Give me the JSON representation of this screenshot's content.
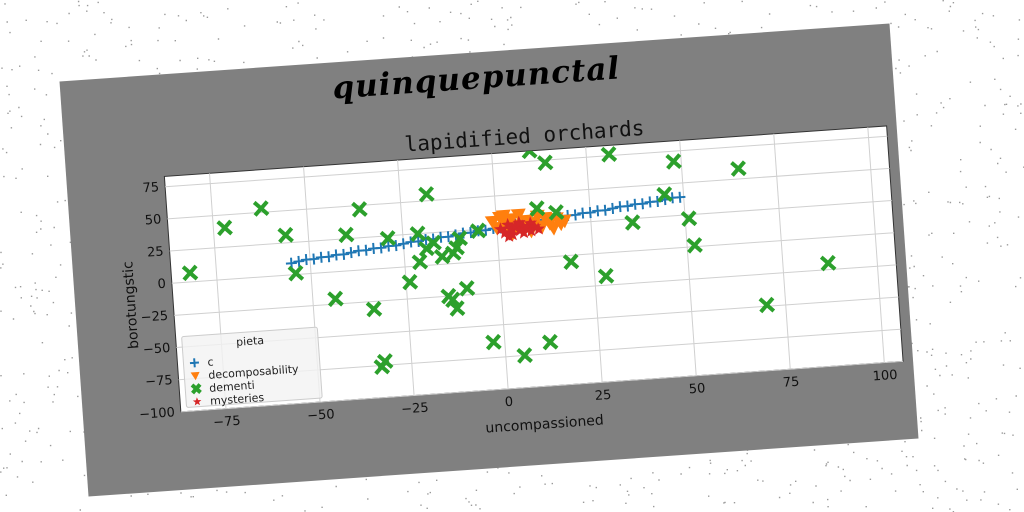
{
  "figure": {
    "suptitle": "quinquepunctal",
    "background_color": "#808080",
    "axes_background_color": "#ffffff"
  },
  "chart_data": {
    "type": "scatter",
    "title": "lapidified orchards",
    "xlabel": "uncompassioned",
    "ylabel": "borotungstic",
    "xlim": [
      -87,
      105
    ],
    "ylim": [
      -100,
      83
    ],
    "xticks": [
      -75,
      -50,
      -25,
      0,
      25,
      50,
      75,
      100
    ],
    "yticks": [
      -100,
      -75,
      -50,
      -25,
      0,
      25,
      50,
      75
    ],
    "grid": true,
    "legend": {
      "title": "pieta",
      "placement": "lower left"
    },
    "series": [
      {
        "name": "c",
        "marker": "plus",
        "color": "#1f77b4",
        "points": [
          [
            -55,
            9
          ],
          [
            -53,
            10
          ],
          [
            -51,
            11
          ],
          [
            -49,
            11
          ],
          [
            -47,
            12
          ],
          [
            -45,
            12
          ],
          [
            -43,
            13
          ],
          [
            -41,
            13
          ],
          [
            -39,
            14
          ],
          [
            -37,
            15
          ],
          [
            -35,
            15
          ],
          [
            -33,
            16
          ],
          [
            -31,
            16
          ],
          [
            -29,
            17
          ],
          [
            -27,
            17
          ],
          [
            -25,
            18
          ],
          [
            -23,
            19
          ],
          [
            -21,
            19
          ],
          [
            -19,
            20
          ],
          [
            -17,
            20
          ],
          [
            -15,
            21
          ],
          [
            -13,
            21
          ],
          [
            -11,
            22
          ],
          [
            -9,
            23
          ],
          [
            -7,
            23
          ],
          [
            -5,
            24
          ],
          [
            -3,
            24
          ],
          [
            -1,
            25
          ],
          [
            1,
            25
          ],
          [
            3,
            26
          ],
          [
            5,
            27
          ],
          [
            7,
            27
          ],
          [
            9,
            28
          ],
          [
            11,
            28
          ],
          [
            13,
            29
          ],
          [
            15,
            29
          ],
          [
            17,
            30
          ],
          [
            19,
            31
          ],
          [
            21,
            31
          ],
          [
            23,
            32
          ],
          [
            25,
            32
          ],
          [
            27,
            33
          ],
          [
            29,
            33
          ],
          [
            31,
            34
          ],
          [
            33,
            35
          ],
          [
            35,
            35
          ],
          [
            37,
            36
          ],
          [
            39,
            36
          ],
          [
            41,
            37
          ],
          [
            43,
            37
          ],
          [
            45,
            38
          ],
          [
            47,
            39
          ],
          [
            49,
            39
          ]
        ]
      },
      {
        "name": "decomposability",
        "marker": "triangle-down",
        "color": "#ff7f0e",
        "points": [
          [
            -1,
            30
          ],
          [
            0,
            25
          ],
          [
            1,
            33
          ],
          [
            2,
            28
          ],
          [
            3,
            22
          ],
          [
            4,
            31
          ],
          [
            5,
            26
          ],
          [
            6,
            34
          ],
          [
            7,
            24
          ],
          [
            8,
            29
          ],
          [
            9,
            21
          ],
          [
            10,
            27
          ],
          [
            11,
            32
          ],
          [
            12,
            24
          ],
          [
            13,
            30
          ],
          [
            14,
            26
          ],
          [
            15,
            22
          ],
          [
            16,
            29
          ],
          [
            17,
            25
          ],
          [
            18,
            27
          ],
          [
            2,
            34
          ],
          [
            4,
            20
          ]
        ]
      },
      {
        "name": "dementi",
        "marker": "x",
        "color": "#2ca02c",
        "points": [
          [
            -82,
            7
          ],
          [
            -72,
            40
          ],
          [
            -62,
            53
          ],
          [
            -56,
            31
          ],
          [
            -54,
            1
          ],
          [
            -44,
            -21
          ],
          [
            -40,
            28
          ],
          [
            -36,
            47
          ],
          [
            -34,
            -31
          ],
          [
            -33,
            -76
          ],
          [
            -32,
            -72
          ],
          [
            -29,
            23
          ],
          [
            -24,
            -12
          ],
          [
            -21,
            25
          ],
          [
            -21,
            3
          ],
          [
            -19,
            13
          ],
          [
            -18,
            55
          ],
          [
            -17,
            17
          ],
          [
            -15,
            6
          ],
          [
            -14,
            -25
          ],
          [
            -13,
            -28
          ],
          [
            -12,
            8
          ],
          [
            -12,
            -35
          ],
          [
            -11,
            12
          ],
          [
            -10,
            19
          ],
          [
            -9,
            -20
          ],
          [
            -5,
            24
          ],
          [
            -3,
            -63
          ],
          [
            5,
            -75
          ],
          [
            10,
            83
          ],
          [
            11,
            38
          ],
          [
            12,
            -66
          ],
          [
            14,
            73
          ],
          [
            16,
            34
          ],
          [
            19,
            -5
          ],
          [
            24,
            90
          ],
          [
            28,
            -18
          ],
          [
            31,
            76
          ],
          [
            36,
            22
          ],
          [
            45,
            42
          ],
          [
            48,
            67
          ],
          [
            51,
            22
          ],
          [
            52,
            1
          ],
          [
            65,
            58
          ],
          [
            70,
            -49
          ],
          [
            87,
            -20
          ],
          [
            95,
            95
          ]
        ]
      },
      {
        "name": "mysteries",
        "marker": "star",
        "color": "#d62728",
        "points": [
          [
            1,
            24
          ],
          [
            2,
            21
          ],
          [
            3,
            27
          ],
          [
            4,
            23
          ],
          [
            4,
            19
          ],
          [
            5,
            26
          ],
          [
            6,
            22
          ],
          [
            7,
            25
          ],
          [
            7,
            20
          ],
          [
            8,
            23
          ],
          [
            9,
            27
          ],
          [
            9,
            21
          ],
          [
            10,
            24
          ],
          [
            11,
            22
          ],
          [
            3,
            18
          ],
          [
            6,
            28
          ]
        ]
      }
    ]
  }
}
